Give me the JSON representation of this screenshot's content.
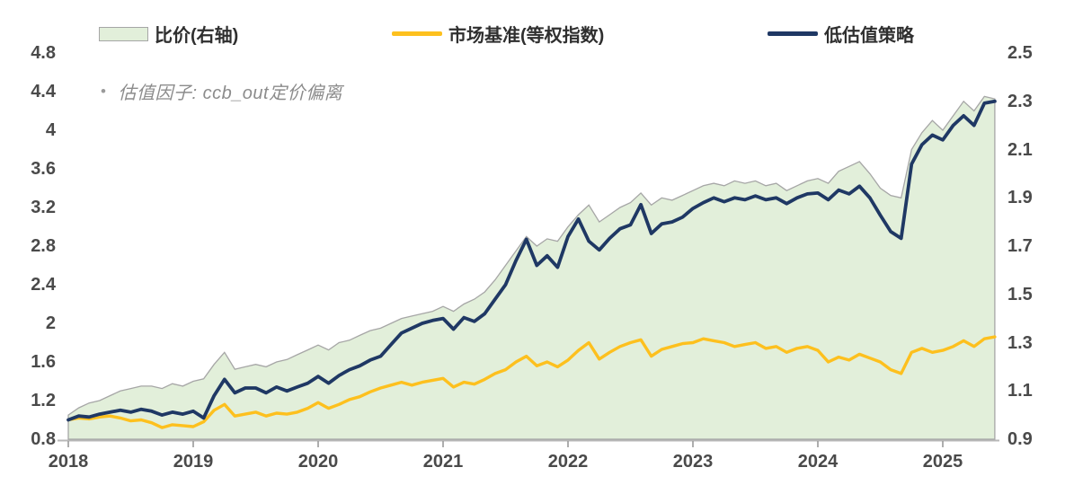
{
  "legend": [
    {
      "id": "ratio",
      "label": "比价(右轴)",
      "swatch": "area",
      "color": "#e2efda",
      "border": "#a6a6a6"
    },
    {
      "id": "benchmark",
      "label": "市场基准(等权指数)",
      "swatch": "line",
      "color": "#fdc01e"
    },
    {
      "id": "strategy",
      "label": "低估值策略",
      "swatch": "line",
      "color": "#1f3864"
    }
  ],
  "annotation": {
    "bullet": "•",
    "text": "估值因子: ccb_out定价偏离"
  },
  "colors": {
    "area_fill": "#e2efda",
    "area_edge": "#a6a6a6",
    "benchmark_line": "#fdc01e",
    "strategy_line": "#1f3864",
    "axis_line": "#b7b7b7",
    "tick_mark": "#9a9a9a",
    "tick_text": "#4a4a4a"
  },
  "chart_data": {
    "type": "line",
    "subtype": "two-lines-plus-area",
    "title": "",
    "xlabel": "",
    "ylabel_left": "",
    "ylabel_right": "",
    "x_start_year": 2018,
    "x_end_year": 2025.42,
    "points_per_year": 12,
    "x_tick_labels": [
      "2018",
      "2019",
      "2020",
      "2021",
      "2022",
      "2023",
      "2024",
      "2025"
    ],
    "left_axis": {
      "min": 0.8,
      "max": 4.8,
      "ticks": [
        "4.8",
        "4.4",
        "4",
        "3.6",
        "3.2",
        "2.8",
        "2.4",
        "2",
        "1.6",
        "1.2",
        "0.8"
      ]
    },
    "right_axis": {
      "min": 0.9,
      "max": 2.5,
      "ticks": [
        "2.5",
        "2.3",
        "2.1",
        "1.9",
        "1.7",
        "1.5",
        "1.3",
        "1.1",
        "0.9"
      ]
    },
    "grid": false,
    "legend_position": "top",
    "series": [
      {
        "name": "比价(右轴)",
        "axis": "right",
        "type": "area",
        "color": "#e2efda",
        "edge_color": "#a6a6a6",
        "values": [
          1.0,
          1.03,
          1.05,
          1.06,
          1.08,
          1.1,
          1.11,
          1.12,
          1.12,
          1.11,
          1.13,
          1.12,
          1.14,
          1.15,
          1.21,
          1.26,
          1.19,
          1.2,
          1.21,
          1.2,
          1.22,
          1.23,
          1.25,
          1.27,
          1.29,
          1.27,
          1.3,
          1.31,
          1.33,
          1.35,
          1.36,
          1.38,
          1.4,
          1.41,
          1.42,
          1.43,
          1.45,
          1.43,
          1.46,
          1.48,
          1.51,
          1.56,
          1.62,
          1.68,
          1.74,
          1.7,
          1.73,
          1.72,
          1.78,
          1.83,
          1.87,
          1.8,
          1.83,
          1.86,
          1.88,
          1.92,
          1.87,
          1.9,
          1.89,
          1.91,
          1.93,
          1.95,
          1.96,
          1.95,
          1.97,
          1.96,
          1.97,
          1.95,
          1.96,
          1.93,
          1.95,
          1.97,
          1.98,
          1.96,
          2.01,
          2.03,
          2.05,
          2.0,
          1.94,
          1.91,
          1.9,
          2.1,
          2.17,
          2.22,
          2.18,
          2.24,
          2.3,
          2.26,
          2.32,
          2.31
        ]
      },
      {
        "name": "市场基准(等权指数)",
        "axis": "left",
        "type": "line",
        "color": "#fdc01e",
        "values": [
          1.0,
          1.02,
          1.01,
          1.03,
          1.04,
          1.02,
          0.99,
          1.0,
          0.97,
          0.92,
          0.95,
          0.94,
          0.93,
          0.98,
          1.1,
          1.16,
          1.04,
          1.06,
          1.08,
          1.04,
          1.07,
          1.06,
          1.08,
          1.12,
          1.18,
          1.12,
          1.16,
          1.21,
          1.24,
          1.29,
          1.33,
          1.36,
          1.39,
          1.36,
          1.39,
          1.41,
          1.43,
          1.34,
          1.39,
          1.37,
          1.42,
          1.48,
          1.52,
          1.6,
          1.66,
          1.56,
          1.6,
          1.55,
          1.62,
          1.72,
          1.8,
          1.63,
          1.7,
          1.76,
          1.8,
          1.83,
          1.66,
          1.73,
          1.76,
          1.79,
          1.8,
          1.84,
          1.82,
          1.8,
          1.76,
          1.78,
          1.8,
          1.74,
          1.76,
          1.7,
          1.74,
          1.76,
          1.72,
          1.6,
          1.65,
          1.62,
          1.68,
          1.64,
          1.6,
          1.52,
          1.48,
          1.7,
          1.74,
          1.7,
          1.72,
          1.76,
          1.82,
          1.76,
          1.84,
          1.86
        ]
      },
      {
        "name": "低估值策略",
        "axis": "left",
        "type": "line",
        "color": "#1f3864",
        "values": [
          1.0,
          1.04,
          1.03,
          1.06,
          1.08,
          1.1,
          1.08,
          1.11,
          1.09,
          1.05,
          1.08,
          1.06,
          1.09,
          1.02,
          1.25,
          1.42,
          1.28,
          1.33,
          1.33,
          1.28,
          1.34,
          1.3,
          1.34,
          1.38,
          1.45,
          1.38,
          1.46,
          1.52,
          1.56,
          1.62,
          1.66,
          1.78,
          1.9,
          1.95,
          2.0,
          2.03,
          2.05,
          1.94,
          2.06,
          2.02,
          2.1,
          2.25,
          2.4,
          2.65,
          2.87,
          2.6,
          2.7,
          2.58,
          2.9,
          3.08,
          2.85,
          2.76,
          2.88,
          2.98,
          3.02,
          3.23,
          2.93,
          3.03,
          3.05,
          3.1,
          3.19,
          3.25,
          3.3,
          3.26,
          3.3,
          3.28,
          3.32,
          3.28,
          3.3,
          3.24,
          3.3,
          3.34,
          3.35,
          3.28,
          3.38,
          3.34,
          3.42,
          3.3,
          3.12,
          2.95,
          2.88,
          3.65,
          3.85,
          3.95,
          3.9,
          4.05,
          4.15,
          4.05,
          4.28,
          4.3
        ]
      }
    ]
  }
}
